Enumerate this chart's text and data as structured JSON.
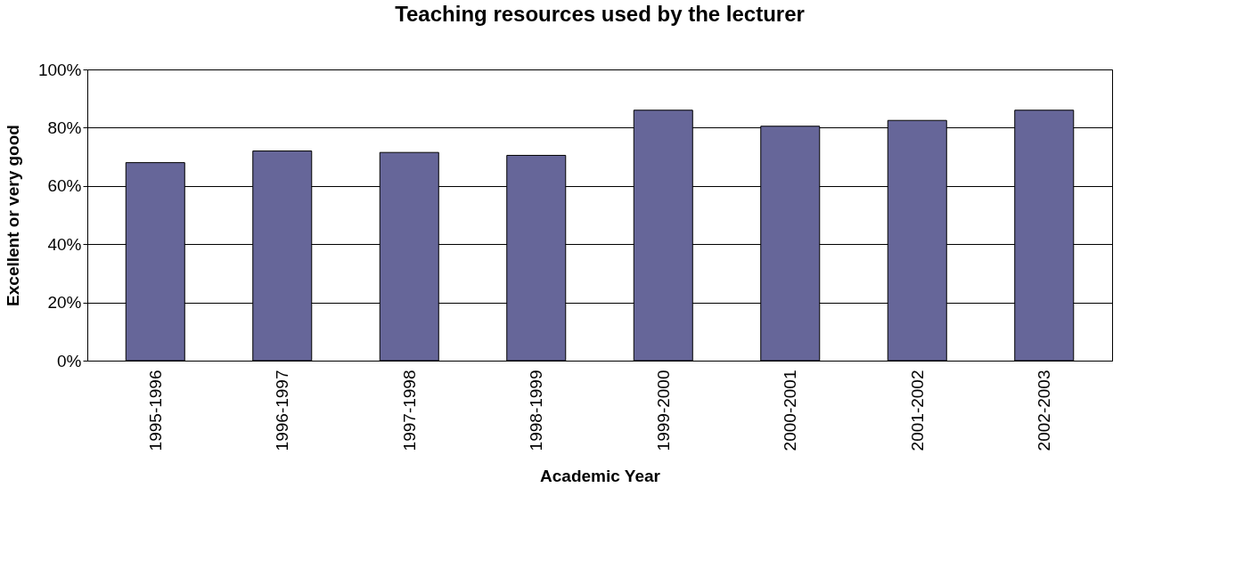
{
  "chart_data": {
    "type": "bar",
    "title": "Teaching resources used by the lecturer",
    "xlabel": "Academic Year",
    "ylabel": "Excellent or very good",
    "categories": [
      "1995-1996",
      "1996-1997",
      "1997-1998",
      "1998-1999",
      "1999-2000",
      "2000-2001",
      "2001-2002",
      "2002-2003"
    ],
    "values": [
      68,
      72,
      71.5,
      70.5,
      86,
      80.5,
      82.5,
      86
    ],
    "color": "#666699",
    "ylim": [
      0,
      100
    ],
    "yticks": [
      {
        "value": 0,
        "label": "0%"
      },
      {
        "value": 20,
        "label": "20%"
      },
      {
        "value": 40,
        "label": "40%"
      },
      {
        "value": 60,
        "label": "60%"
      },
      {
        "value": 80,
        "label": "80%"
      },
      {
        "value": 100,
        "label": "100%"
      }
    ],
    "grid": "y"
  }
}
